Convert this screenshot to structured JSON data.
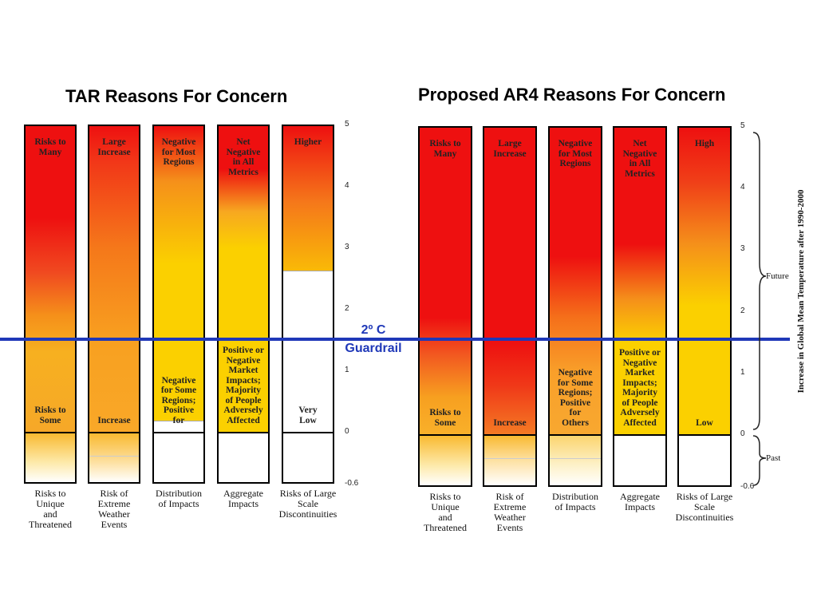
{
  "panels": {
    "left": {
      "title": "TAR Reasons For Concern",
      "bars": [
        {
          "top": "Risks to\nMany",
          "bottom": "Risks to\nSome",
          "mid": ""
        },
        {
          "top": "Large\nIncrease",
          "bottom": "Increase",
          "mid": ""
        },
        {
          "top": "Negative\nfor Most\nRegions",
          "bottom": "",
          "mid": "Negative\nfor Some\nRegions;\nPositive\nfor"
        },
        {
          "top": "Net\nNegative\nin All\nMetrics",
          "bottom": "",
          "mid": "Positive or\nNegative\nMarket\nImpacts;\nMajority\nof People\nAdversely\nAffected"
        },
        {
          "top": "Higher",
          "bottom": "Very\nLow",
          "mid": ""
        }
      ],
      "ticks": [
        "5",
        "4",
        "3",
        "2",
        "1",
        "0",
        "-0.6"
      ]
    },
    "right": {
      "title": "Proposed AR4 Reasons For Concern",
      "bars": [
        {
          "top": "Risks to\nMany",
          "bottom": "Risks to\nSome",
          "mid": ""
        },
        {
          "top": "Large\nIncrease",
          "bottom": "Increase",
          "mid": ""
        },
        {
          "top": "Negative\nfor Most\nRegions",
          "bottom": "",
          "mid": "Negative\nfor Some\nRegions;\nPositive\nfor\nOthers"
        },
        {
          "top": "Net\nNegative\nin All\nMetrics",
          "bottom": "",
          "mid": "Positive or\nNegative\nMarket\nImpacts;\nMajority\nof People\nAdversely\nAffected"
        },
        {
          "top": "High",
          "bottom": "Low",
          "mid": ""
        }
      ],
      "ticks": [
        "5",
        "4",
        "3",
        "2",
        "1",
        "0",
        "-0.6"
      ]
    }
  },
  "categories": [
    "Risks to\nUnique\nand\nThreatened",
    "Risk of\nExtreme\nWeather\nEvents",
    "Distribution\nof Impacts",
    "Aggregate\nImpacts",
    "Risks of Large\nScale\nDiscontinuities"
  ],
  "guardrail": {
    "line1": "2º C",
    "line2": "Guardrail"
  },
  "yaxis_title": "Increase in Global Mean Temperature after 1990-2000",
  "brace_labels": {
    "future": "Future",
    "past": "Past"
  },
  "colors": {
    "red": "#ee1010",
    "orange": "#f5901a",
    "yellow": "#fbd000",
    "guardrail": "#1f38b8"
  }
}
